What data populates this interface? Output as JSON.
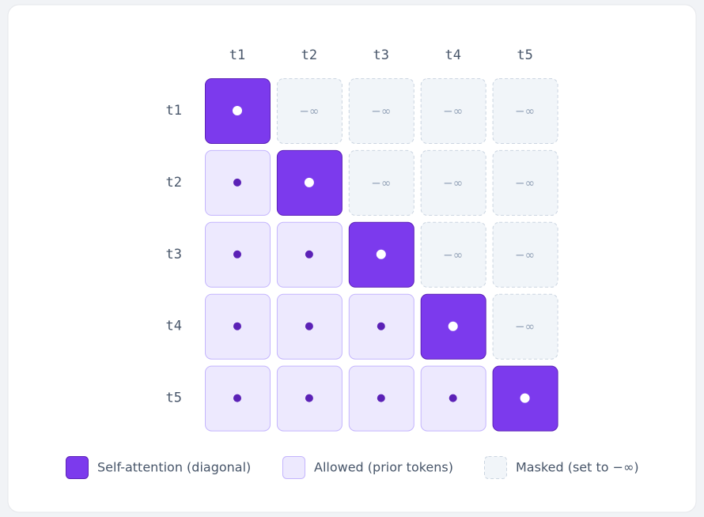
{
  "columns": [
    "t1",
    "t2",
    "t3",
    "t4",
    "t5"
  ],
  "rows": [
    "t1",
    "t2",
    "t3",
    "t4",
    "t5"
  ],
  "cells": [
    [
      null,
      "−∞",
      "−∞",
      "−∞",
      "−∞"
    ],
    [
      null,
      null,
      "−∞",
      "−∞",
      "−∞"
    ],
    [
      null,
      null,
      null,
      "−∞",
      "−∞"
    ],
    [
      null,
      null,
      null,
      null,
      "−∞"
    ],
    [
      null,
      null,
      null,
      null,
      null
    ]
  ],
  "legend": [
    "Self-attention (diagonal)",
    "Allowed (prior tokens)",
    "Masked (set to −∞)"
  ]
}
